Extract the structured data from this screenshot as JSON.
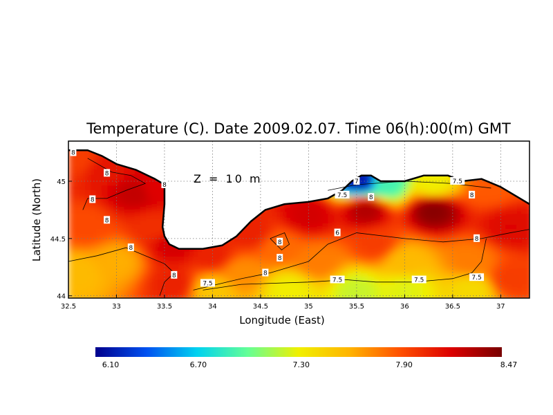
{
  "chart_data": {
    "type": "heatmap",
    "title": "Temperature (C). Date 2009.02.07. Time 06(h):00(m) GMT",
    "annotation": "Z = 10 m",
    "xlabel": "Longitude (East)",
    "ylabel": "Latitude (North)",
    "xlim": [
      32.5,
      37.3
    ],
    "ylim": [
      43.98,
      45.35
    ],
    "x_ticks": [
      "32.5",
      "33",
      "33.5",
      "34",
      "34.5",
      "35",
      "35.5",
      "36",
      "36.5",
      "37"
    ],
    "x_tick_values": [
      32.5,
      33,
      33.5,
      34,
      34.5,
      35,
      35.5,
      36,
      36.5,
      37
    ],
    "y_ticks": [
      "44",
      "44.5",
      "45"
    ],
    "y_tick_values": [
      44,
      44.5,
      45
    ],
    "grid": true,
    "colorbar": {
      "min": 6.1,
      "max": 8.47,
      "tick_labels": [
        "6.10",
        "6.70",
        "7.30",
        "7.90",
        "8.47"
      ],
      "tick_values": [
        6.1,
        6.7,
        7.3,
        7.9,
        8.47
      ],
      "colors": [
        "#00008c",
        "#0050f0",
        "#00d2f0",
        "#64ff96",
        "#f0f000",
        "#ffb400",
        "#ff5000",
        "#dc0000",
        "#780000"
      ]
    },
    "contour_labels": [
      {
        "text": "8",
        "lon": 32.55,
        "lat": 45.25
      },
      {
        "text": "8",
        "lon": 32.9,
        "lat": 45.07
      },
      {
        "text": "8",
        "lon": 32.75,
        "lat": 44.84
      },
      {
        "text": "8",
        "lon": 32.9,
        "lat": 44.66
      },
      {
        "text": "8",
        "lon": 33.15,
        "lat": 44.42
      },
      {
        "text": "8",
        "lon": 33.5,
        "lat": 44.97
      },
      {
        "text": "8",
        "lon": 33.6,
        "lat": 44.18
      },
      {
        "text": "8",
        "lon": 34.7,
        "lat": 44.47
      },
      {
        "text": "8",
        "lon": 34.7,
        "lat": 44.33
      },
      {
        "text": "8",
        "lon": 34.55,
        "lat": 44.2
      },
      {
        "text": "6",
        "lon": 35.3,
        "lat": 44.55
      },
      {
        "text": "8",
        "lon": 36.75,
        "lat": 44.5
      },
      {
        "text": "7.5",
        "lon": 35.35,
        "lat": 44.88
      },
      {
        "text": "8",
        "lon": 35.65,
        "lat": 44.86
      },
      {
        "text": "7",
        "lon": 35.5,
        "lat": 45.0
      },
      {
        "text": "7.5",
        "lon": 36.55,
        "lat": 45.0
      },
      {
        "text": "8",
        "lon": 36.7,
        "lat": 44.88
      },
      {
        "text": "7.5",
        "lon": 33.95,
        "lat": 44.11
      },
      {
        "text": "7.5",
        "lon": 35.3,
        "lat": 44.14
      },
      {
        "text": "7.5",
        "lon": 36.15,
        "lat": 44.14
      },
      {
        "text": "7.5",
        "lon": 36.75,
        "lat": 44.16
      }
    ],
    "field_points": [
      {
        "lon": 32.6,
        "lat": 45.2,
        "t": 7.95
      },
      {
        "lon": 32.9,
        "lat": 45.1,
        "t": 8.1
      },
      {
        "lon": 33.2,
        "lat": 44.9,
        "t": 8.25
      },
      {
        "lon": 32.7,
        "lat": 44.6,
        "t": 7.9
      },
      {
        "lon": 32.6,
        "lat": 44.2,
        "t": 7.55
      },
      {
        "lon": 33.0,
        "lat": 44.3,
        "t": 7.6
      },
      {
        "lon": 33.4,
        "lat": 44.6,
        "t": 8.0
      },
      {
        "lon": 33.4,
        "lat": 44.95,
        "t": 8.15
      },
      {
        "lon": 33.6,
        "lat": 44.45,
        "t": 8.2
      },
      {
        "lon": 33.6,
        "lat": 44.1,
        "t": 8.05
      },
      {
        "lon": 34.0,
        "lat": 44.35,
        "t": 8.05
      },
      {
        "lon": 34.4,
        "lat": 44.55,
        "t": 8.05
      },
      {
        "lon": 34.7,
        "lat": 44.42,
        "t": 7.8
      },
      {
        "lon": 34.3,
        "lat": 44.2,
        "t": 7.7
      },
      {
        "lon": 34.0,
        "lat": 44.05,
        "t": 7.5
      },
      {
        "lon": 34.8,
        "lat": 44.05,
        "t": 7.3
      },
      {
        "lon": 35.5,
        "lat": 44.05,
        "t": 7.2
      },
      {
        "lon": 35.1,
        "lat": 44.3,
        "t": 7.75
      },
      {
        "lon": 35.0,
        "lat": 44.7,
        "t": 8.2
      },
      {
        "lon": 35.6,
        "lat": 44.75,
        "t": 8.3
      },
      {
        "lon": 35.7,
        "lat": 44.45,
        "t": 7.95
      },
      {
        "lon": 36.3,
        "lat": 44.75,
        "t": 8.42
      },
      {
        "lon": 36.0,
        "lat": 44.3,
        "t": 7.55
      },
      {
        "lon": 36.0,
        "lat": 44.05,
        "t": 7.25
      },
      {
        "lon": 36.7,
        "lat": 44.3,
        "t": 7.75
      },
      {
        "lon": 36.7,
        "lat": 44.05,
        "t": 7.4
      },
      {
        "lon": 37.1,
        "lat": 44.6,
        "t": 8.15
      },
      {
        "lon": 37.1,
        "lat": 44.15,
        "t": 7.95
      },
      {
        "lon": 36.9,
        "lat": 44.95,
        "t": 7.85
      },
      {
        "lon": 35.55,
        "lat": 45.0,
        "t": 6.2
      },
      {
        "lon": 35.8,
        "lat": 44.97,
        "t": 6.9
      },
      {
        "lon": 36.3,
        "lat": 44.97,
        "t": 7.3
      }
    ],
    "coastline": [
      [
        32.5,
        45.27
      ],
      [
        32.7,
        45.27
      ],
      [
        32.85,
        45.22
      ],
      [
        33.0,
        45.15
      ],
      [
        33.2,
        45.1
      ],
      [
        33.4,
        45.02
      ],
      [
        33.5,
        44.97
      ],
      [
        33.5,
        44.8
      ],
      [
        33.48,
        44.6
      ],
      [
        33.5,
        44.52
      ],
      [
        33.55,
        44.45
      ],
      [
        33.65,
        44.41
      ],
      [
        33.9,
        44.41
      ],
      [
        34.1,
        44.44
      ],
      [
        34.25,
        44.52
      ],
      [
        34.4,
        44.65
      ],
      [
        34.55,
        44.75
      ],
      [
        34.75,
        44.8
      ],
      [
        35.0,
        44.82
      ],
      [
        35.2,
        44.85
      ],
      [
        35.35,
        44.92
      ],
      [
        35.45,
        45.0
      ],
      [
        35.55,
        45.05
      ],
      [
        35.65,
        45.05
      ],
      [
        35.75,
        45.0
      ],
      [
        36.0,
        45.0
      ],
      [
        36.2,
        45.05
      ],
      [
        36.45,
        45.05
      ],
      [
        36.6,
        45.0
      ],
      [
        36.8,
        45.02
      ],
      [
        37.0,
        44.95
      ],
      [
        37.2,
        44.85
      ],
      [
        37.3,
        44.8
      ]
    ]
  }
}
